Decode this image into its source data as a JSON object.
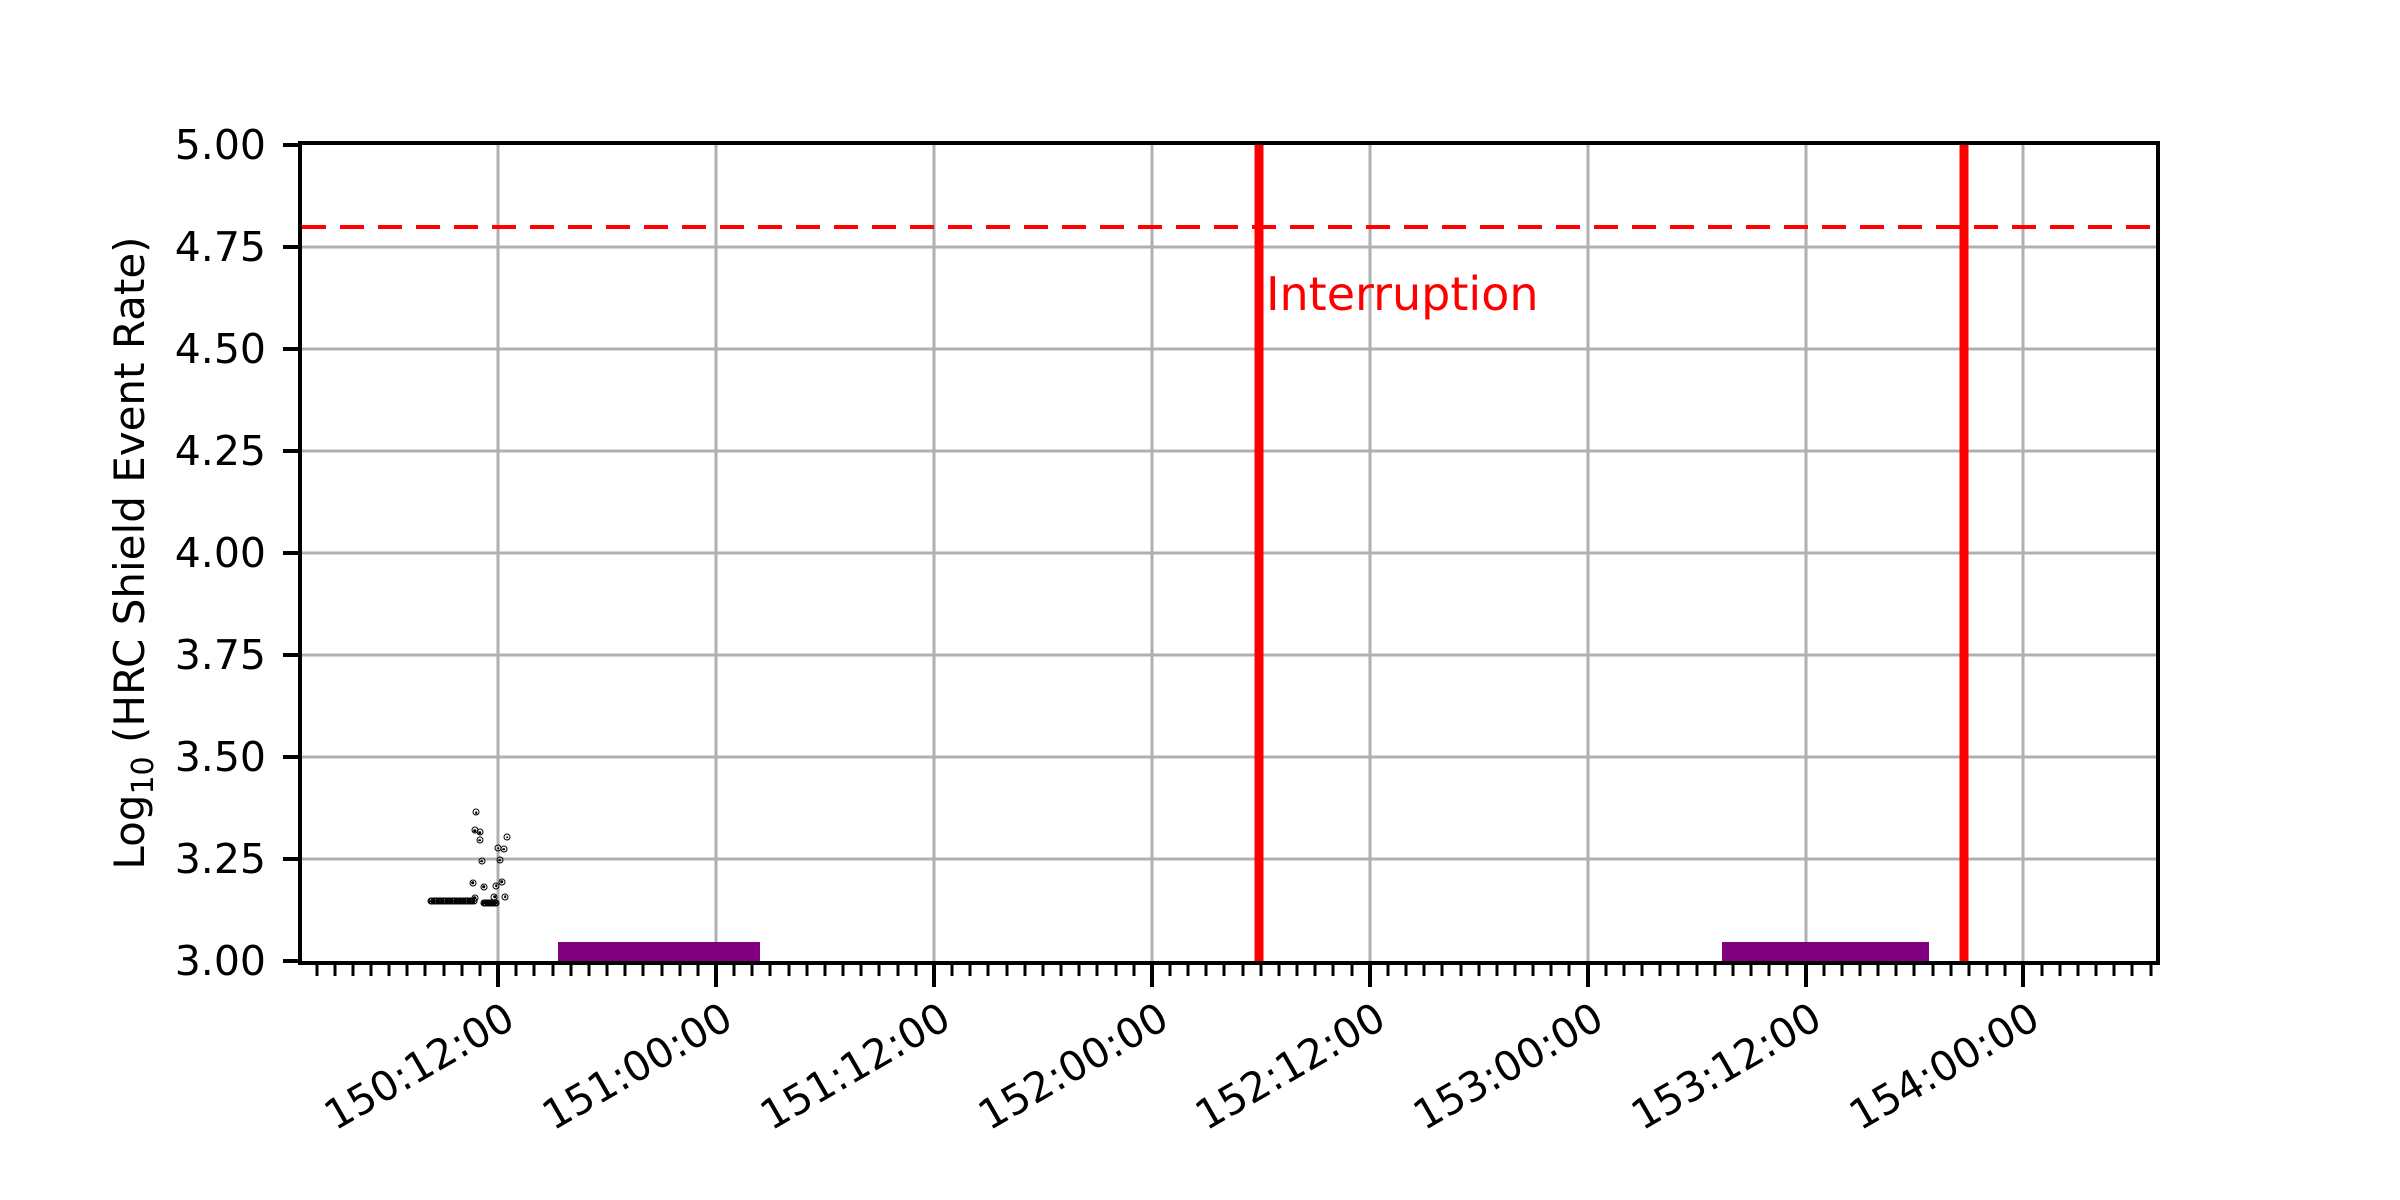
{
  "figure": {
    "title": "",
    "ylabel": {
      "prefix": "Log",
      "subscript": "10",
      "suffix": " (HRC Shield Event Rate)"
    }
  },
  "colors": {
    "axis": "#000000",
    "grid": "#b0b0b0",
    "scatter": "#000000",
    "threshold": "#ff0000",
    "interruption_line": "#ff0000",
    "annotation_text": "#ff0000",
    "interval_bar": "#800080",
    "background": "#ffffff"
  },
  "chart_data": {
    "type": "scatter",
    "title": "",
    "xlabel": "",
    "ylabel": "Log10 (HRC Shield Event Rate)",
    "grid": true,
    "ylim": [
      3.0,
      5.0
    ],
    "y_ticks": [
      {
        "value": 5.0,
        "label": "5.00"
      },
      {
        "value": 4.75,
        "label": "4.75"
      },
      {
        "value": 4.5,
        "label": "4.50"
      },
      {
        "value": 4.25,
        "label": "4.25"
      },
      {
        "value": 4.0,
        "label": "4.00"
      },
      {
        "value": 3.75,
        "label": "3.75"
      },
      {
        "value": 3.5,
        "label": "3.50"
      },
      {
        "value": 3.25,
        "label": "3.25"
      },
      {
        "value": 3.0,
        "label": "3.00"
      }
    ],
    "x_axis_units": "day-of-year time (DDD:HH:MM), stored as day*24+hours",
    "xlim_hours": [
      3601.2,
      3703.3
    ],
    "x_tick_rotation_deg": -30,
    "x_minor_tick_every_hours": 1,
    "x_major_ticks": [
      {
        "t": 3612,
        "label": "150:12:00"
      },
      {
        "t": 3624,
        "label": "151:00:00"
      },
      {
        "t": 3636,
        "label": "151:12:00"
      },
      {
        "t": 3648,
        "label": "152:00:00"
      },
      {
        "t": 3660,
        "label": "152:12:00"
      },
      {
        "t": 3672,
        "label": "153:00:00"
      },
      {
        "t": 3684,
        "label": "153:12:00"
      },
      {
        "t": 3696,
        "label": "154:00:00"
      }
    ],
    "threshold_line": {
      "y": 4.8,
      "style": "dashed",
      "color": "#ff0000"
    },
    "vlines": [
      {
        "t": 3653.9,
        "approx_time": "152:05:50",
        "annotation": "Interruption",
        "annotation_y": 4.635,
        "color": "#ff0000"
      },
      {
        "t": 3692.7,
        "approx_time": "153:20:40",
        "annotation": "",
        "color": "#ff0000"
      }
    ],
    "intervals": [
      {
        "t_start": 3615.3,
        "t_end": 3626.4,
        "y_bottom": 3.0,
        "y_top": 3.047,
        "color": "#800080"
      },
      {
        "t_start": 3679.4,
        "t_end": 3690.8,
        "y_bottom": 3.0,
        "y_top": 3.047,
        "color": "#800080"
      }
    ],
    "scatter_dense_runs": [
      {
        "t_start": 3608.3,
        "t_end": 3610.65,
        "y": 3.147,
        "n": 34
      },
      {
        "t_start": 3611.2,
        "t_end": 3611.9,
        "y": 3.143,
        "n": 10
      }
    ],
    "scatter_points": [
      [
        3610.8,
        3.364
      ],
      [
        3610.7,
        3.32
      ],
      [
        3611.0,
        3.315
      ],
      [
        3611.0,
        3.296
      ],
      [
        3612.5,
        3.303
      ],
      [
        3612.0,
        3.276
      ],
      [
        3612.3,
        3.274
      ],
      [
        3611.1,
        3.245
      ],
      [
        3612.1,
        3.247
      ],
      [
        3610.6,
        3.192
      ],
      [
        3611.2,
        3.182
      ],
      [
        3612.2,
        3.194
      ],
      [
        3611.9,
        3.184
      ],
      [
        3611.8,
        3.158
      ],
      [
        3612.4,
        3.158
      ],
      [
        3610.7,
        3.155
      ]
    ]
  }
}
